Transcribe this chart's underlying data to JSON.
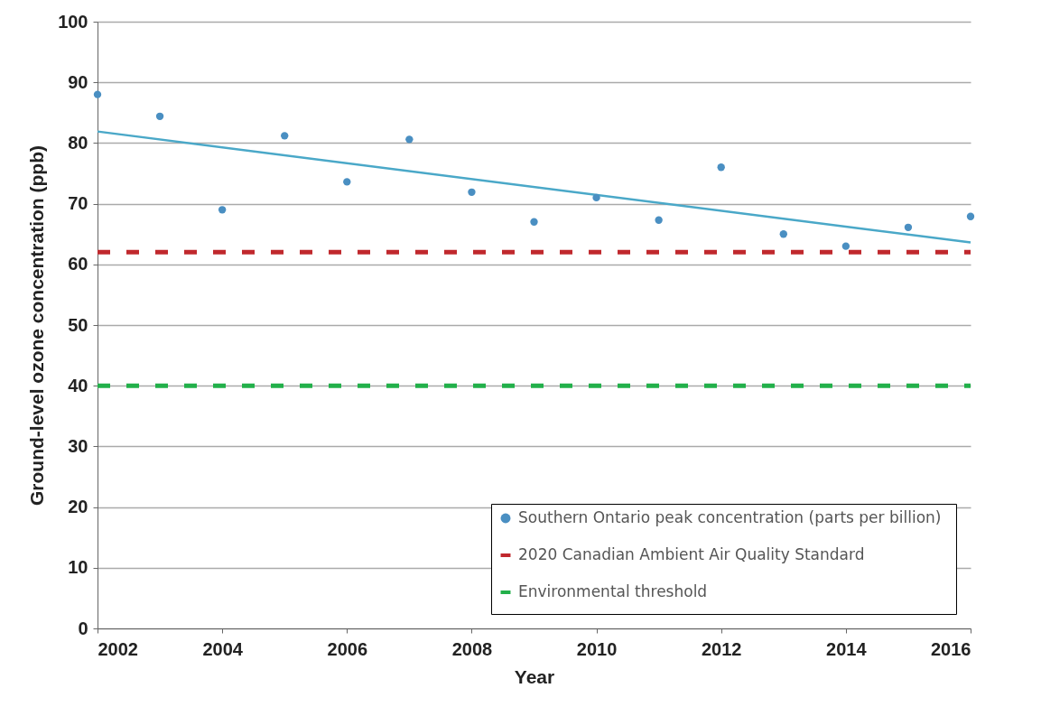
{
  "chart_data": {
    "type": "scatter",
    "xlabel": "Year",
    "ylabel": "Ground-level ozone concentration (ppb)",
    "xlim": [
      2002,
      2016
    ],
    "ylim": [
      0,
      100
    ],
    "xticks": [
      2002,
      2004,
      2006,
      2008,
      2010,
      2012,
      2014,
      2016
    ],
    "yticks": [
      0,
      10,
      20,
      30,
      40,
      50,
      60,
      70,
      80,
      90,
      100
    ],
    "grid": "y",
    "legend": "bottom right",
    "series": [
      {
        "name": "Southern Ontario peak concentration (parts per billion)",
        "color": "#4a8fc2",
        "marker": "circle",
        "x": [
          2002,
          2003,
          2004,
          2005,
          2006,
          2007,
          2008,
          2009,
          2010,
          2011,
          2012,
          2013,
          2014,
          2015,
          2016
        ],
        "values": [
          88.0,
          84.4,
          69.0,
          81.2,
          73.6,
          80.6,
          71.9,
          67.0,
          71.0,
          67.3,
          76.0,
          65.0,
          63.0,
          66.1,
          67.9
        ]
      },
      {
        "type": "line",
        "name": "2020 Canadian Ambient Air Quality Standard",
        "color": "#c0282d",
        "line_style": "dashed",
        "x": [
          2002,
          2016
        ],
        "values": [
          62,
          62
        ]
      },
      {
        "type": "line",
        "name": "Environmental threshold",
        "color": "#22b04a",
        "line_style": "dashed",
        "x": [
          2002,
          2016
        ],
        "values": [
          40,
          40
        ]
      },
      {
        "type": "line",
        "color": "#4aa8c8",
        "line_style": "solid",
        "x": [
          2002,
          2016
        ],
        "values": [
          81.9,
          63.6
        ]
      }
    ]
  }
}
